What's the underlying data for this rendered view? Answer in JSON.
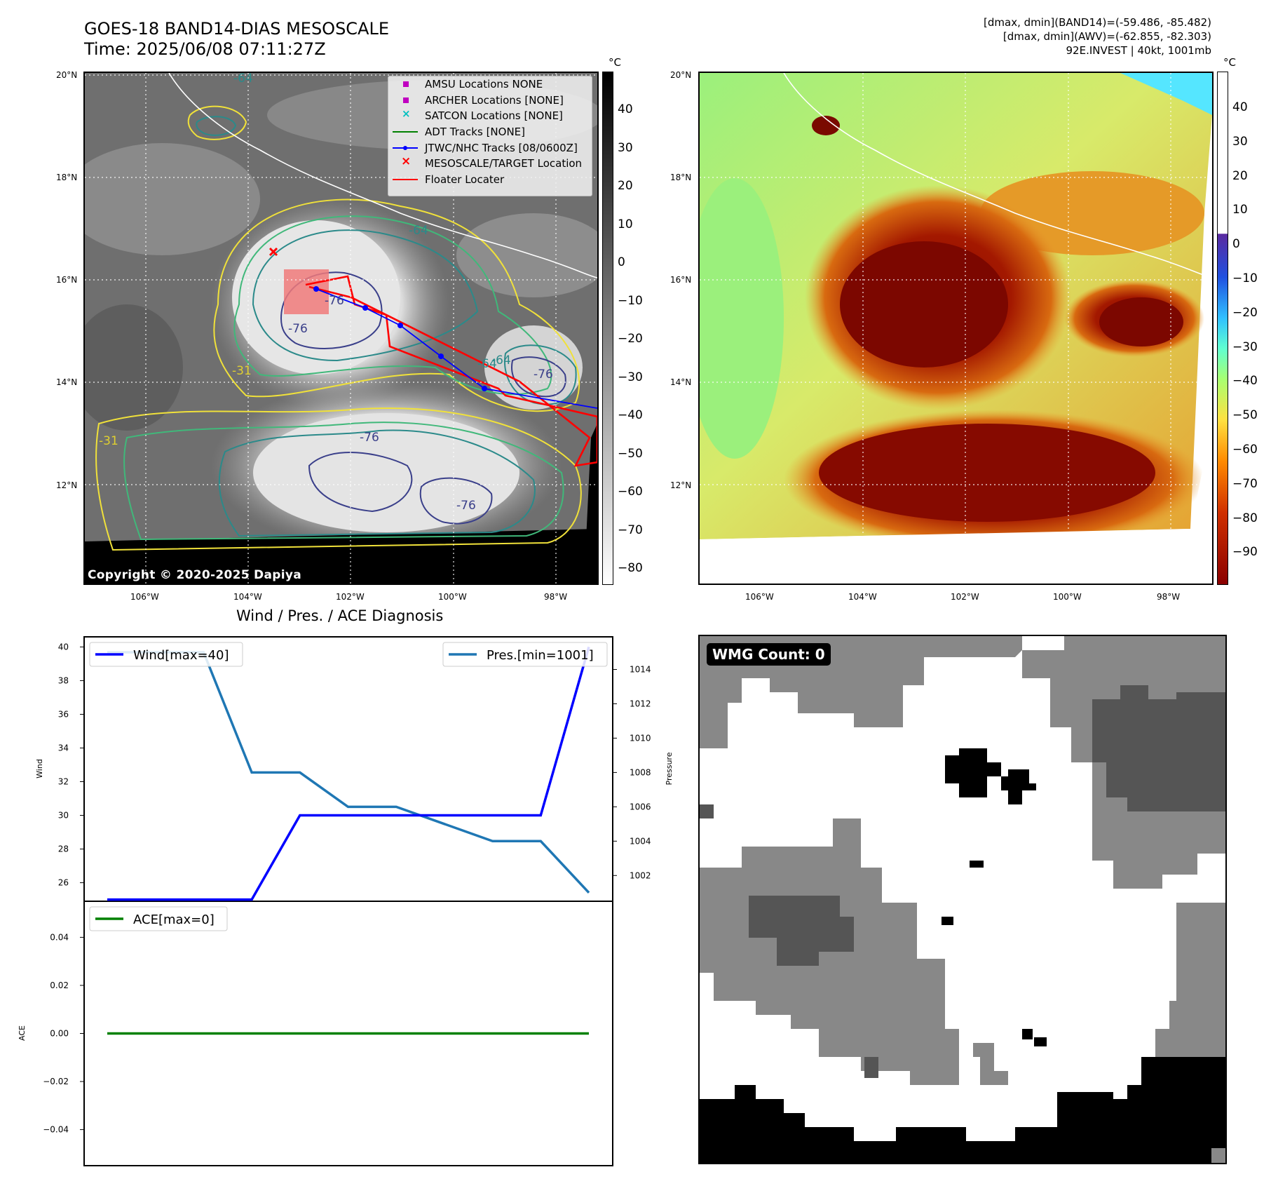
{
  "header": {
    "title_line1": "GOES-18 BAND14-DIAS MESOSCALE",
    "title_line2": "Time: 2025/06/08 07:11:27Z",
    "right_line1": "[dmax, dmin](BAND14)=(-59.486, -85.482)",
    "right_line2": "[dmax, dmin](AWV)=(-62.855, -82.303)",
    "right_line3": "92E.INVEST | 40kt, 1001mb"
  },
  "map": {
    "lon_labels": [
      "106°W",
      "104°W",
      "102°W",
      "100°W",
      "98°W"
    ],
    "lat_labels": [
      "20°N",
      "18°N",
      "16°N",
      "14°N",
      "12°N"
    ],
    "copyright": "Copyright © 2020-2025 Dapiya",
    "contour_labels": [
      "-64",
      "-64",
      "-76",
      "-76",
      "-64",
      "-76",
      "-31",
      "-31",
      "-76",
      "-76",
      "-64"
    ]
  },
  "left_colorbar": {
    "unit": "°C",
    "ticks": [
      "40",
      "30",
      "20",
      "10",
      "0",
      "−10",
      "−20",
      "−30",
      "−40",
      "−50",
      "−60",
      "−70",
      "−80"
    ]
  },
  "right_colorbar": {
    "unit": "°C",
    "ticks": [
      "40",
      "30",
      "20",
      "10",
      "0",
      "−10",
      "−20",
      "−30",
      "−40",
      "−50",
      "−60",
      "−70",
      "−80",
      "−90"
    ]
  },
  "legend": {
    "items": [
      {
        "label": "AMSU Locations NONE",
        "color": "#c000c0",
        "symbol": "square"
      },
      {
        "label": "ARCHER Locations [NONE]",
        "color": "#c000c0",
        "symbol": "square"
      },
      {
        "label": "SATCON Locations [NONE]",
        "color": "#00c0c0",
        "symbol": "x"
      },
      {
        "label": "ADT Tracks [NONE]",
        "color": "#008000",
        "symbol": "line"
      },
      {
        "label": "JTWC/NHC Tracks [08/0600Z]",
        "color": "#0000ff",
        "symbol": "line-dot"
      },
      {
        "label": "MESOSCALE/TARGET Location",
        "color": "#ff0000",
        "symbol": "x"
      },
      {
        "label": "Floater Locater",
        "color": "#ff0000",
        "symbol": "line"
      }
    ]
  },
  "diagnosis": {
    "title": "Wind / Pres. / ACE Diagnosis"
  },
  "chart_data": [
    {
      "type": "line",
      "title": "Wind / Pres. / ACE Diagnosis",
      "ylabel": "Wind",
      "y2label": "Pressure",
      "x": [
        0,
        1,
        2,
        3,
        4,
        5,
        6,
        7,
        8,
        9,
        10
      ],
      "ylim": [
        24.9,
        40.6
      ],
      "y2lim": [
        1000.5,
        1015.9
      ],
      "yticks": [
        "26",
        "28",
        "30",
        "32",
        "34",
        "36",
        "38",
        "40"
      ],
      "y2ticks": [
        "1002",
        "1004",
        "1006",
        "1008",
        "1010",
        "1012",
        "1014"
      ],
      "series": [
        {
          "name": "Wind[max=40]",
          "axis": "left",
          "color": "#0000ff",
          "values": [
            25,
            25,
            25,
            25,
            30,
            30,
            30,
            30,
            30,
            30,
            40
          ]
        },
        {
          "name": "Pres.[min=1001]",
          "axis": "right",
          "color": "#1f77b4",
          "values": [
            1015,
            1015,
            1015,
            1008,
            1008,
            1006,
            1006,
            1005,
            1004,
            1004,
            1001
          ]
        }
      ]
    },
    {
      "type": "line",
      "ylabel": "ACE",
      "x": [
        0,
        1,
        2,
        3,
        4,
        5,
        6,
        7,
        8,
        9,
        10
      ],
      "ylim": [
        -0.055,
        0.055
      ],
      "yticks": [
        "0.04",
        "0.02",
        "0.00",
        "−0.02",
        "−0.04"
      ],
      "series": [
        {
          "name": "ACE[max=0]",
          "color": "#008000",
          "values": [
            0,
            0,
            0,
            0,
            0,
            0,
            0,
            0,
            0,
            0,
            0
          ]
        }
      ]
    }
  ],
  "wmg": {
    "badge": "WMG Count: 0"
  }
}
